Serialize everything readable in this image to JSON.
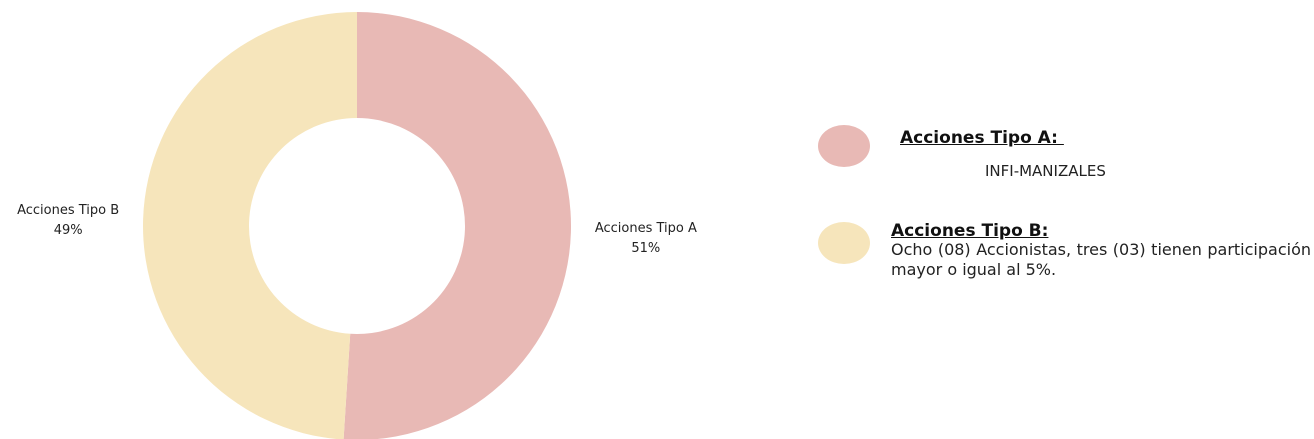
{
  "chart_data": {
    "type": "pie",
    "donut": true,
    "categories": [
      "Acciones Tipo A",
      "Acciones Tipo B"
    ],
    "values": [
      51,
      49
    ],
    "labels": [
      "Acciones Tipo A\n51%",
      "Acciones Tipo B\n49%"
    ],
    "colors": [
      "#e8b9b5",
      "#f6e5bb"
    ]
  },
  "legend": {
    "a": {
      "title": "Acciones Tipo A: ",
      "description": "INFI-MANIZALES",
      "color": "#e8b9b5"
    },
    "b": {
      "title": "Acciones Tipo B:",
      "description": "Ocho (08) Accionistas, tres (03) tienen participación mayor o igual  al 5%.",
      "color": "#f6e5bb"
    }
  }
}
